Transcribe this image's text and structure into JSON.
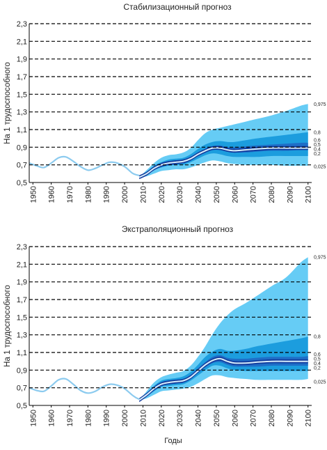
{
  "colors": {
    "band_outer": "#66ccf5",
    "band_mid": "#1c9dde",
    "band_inner": "#1f6ec7",
    "band_core": "#123a9c",
    "median_line": "#d8eefb",
    "historical_line": "#8ccbef",
    "grid": "#000000"
  },
  "chart_data": [
    {
      "type": "area",
      "title": "Стабилизационный прогноз",
      "ylabel": "На 1 трудоспособного",
      "xlabel": "",
      "ylim": [
        0.5,
        2.3
      ],
      "xlim": [
        1948,
        2102
      ],
      "yticks": [
        "0,5",
        "0,7",
        "0,9",
        "1,1",
        "1,3",
        "1,5",
        "1,7",
        "1,9",
        "2,1",
        "2,3"
      ],
      "xticks": [
        "1950",
        "1960",
        "1970",
        "1980",
        "1990",
        "2000",
        "2010",
        "2020",
        "2030",
        "2040",
        "2050",
        "2060",
        "2070",
        "2080",
        "2090",
        "2100"
      ],
      "grid": "horizontal dashed",
      "historical": {
        "x": [
          1948,
          1952,
          1956,
          1960,
          1964,
          1968,
          1972,
          1976,
          1980,
          1984,
          1988,
          1992,
          1996,
          2000,
          2004,
          2006,
          2008
        ],
        "y": [
          0.72,
          0.69,
          0.67,
          0.72,
          0.78,
          0.79,
          0.74,
          0.68,
          0.64,
          0.66,
          0.7,
          0.73,
          0.72,
          0.68,
          0.61,
          0.59,
          0.58
        ]
      },
      "forecast": {
        "x": [
          2008,
          2012,
          2016,
          2020,
          2024,
          2028,
          2032,
          2036,
          2040,
          2044,
          2048,
          2052,
          2056,
          2060,
          2066,
          2072,
          2080,
          2088,
          2096,
          2100
        ],
        "median": [
          0.56,
          0.6,
          0.66,
          0.7,
          0.72,
          0.73,
          0.74,
          0.77,
          0.82,
          0.86,
          0.89,
          0.89,
          0.87,
          0.86,
          0.87,
          0.88,
          0.89,
          0.89,
          0.89,
          0.89
        ],
        "bands": [
          {
            "quantiles": "0.025-0.975",
            "lower": [
              0.56,
              0.57,
              0.6,
              0.63,
              0.64,
              0.65,
              0.65,
              0.67,
              0.7,
              0.73,
              0.75,
              0.74,
              0.72,
              0.71,
              0.7,
              0.7,
              0.7,
              0.69,
              0.69,
              0.69
            ],
            "upper": [
              0.56,
              0.64,
              0.72,
              0.78,
              0.81,
              0.82,
              0.84,
              0.89,
              0.98,
              1.06,
              1.1,
              1.12,
              1.14,
              1.16,
              1.19,
              1.22,
              1.26,
              1.31,
              1.37,
              1.39
            ]
          },
          {
            "quantiles": "0.2-0.8",
            "lower": [
              0.56,
              0.59,
              0.64,
              0.67,
              0.69,
              0.7,
              0.7,
              0.73,
              0.77,
              0.81,
              0.83,
              0.82,
              0.8,
              0.79,
              0.79,
              0.79,
              0.8,
              0.8,
              0.8,
              0.8
            ],
            "upper": [
              0.56,
              0.62,
              0.69,
              0.73,
              0.76,
              0.77,
              0.78,
              0.82,
              0.88,
              0.93,
              0.96,
              0.97,
              0.96,
              0.96,
              0.98,
              1.0,
              1.02,
              1.04,
              1.06,
              1.07
            ]
          },
          {
            "quantiles": "0.4-0.6",
            "lower": [
              0.56,
              0.6,
              0.66,
              0.69,
              0.71,
              0.72,
              0.72,
              0.75,
              0.8,
              0.84,
              0.87,
              0.87,
              0.85,
              0.84,
              0.84,
              0.85,
              0.86,
              0.86,
              0.87,
              0.87
            ],
            "upper": [
              0.56,
              0.61,
              0.68,
              0.72,
              0.74,
              0.75,
              0.76,
              0.79,
              0.84,
              0.88,
              0.91,
              0.92,
              0.9,
              0.9,
              0.91,
              0.92,
              0.93,
              0.94,
              0.95,
              0.95
            ]
          }
        ]
      },
      "quantile_labels": [
        {
          "label": "0,975",
          "y": 1.39
        },
        {
          "label": "0,8",
          "y": 1.07
        },
        {
          "label": "0,6",
          "y": 0.98
        },
        {
          "label": "0,5",
          "y": 0.94
        },
        {
          "label": "0,4",
          "y": 0.9
        },
        {
          "label": "0,2",
          "y": 0.85
        },
        {
          "label": "0,025",
          "y": 0.68
        }
      ]
    },
    {
      "type": "area",
      "title": "Экстраполяционный прогноз",
      "ylabel": "На 1 трудоспособного",
      "xlabel": "Годы",
      "ylim": [
        0.5,
        2.3
      ],
      "xlim": [
        1948,
        2102
      ],
      "yticks": [
        "0,5",
        "0,7",
        "0,9",
        "1,1",
        "1,3",
        "1,5",
        "1,7",
        "1,9",
        "2,1",
        "2,3"
      ],
      "xticks": [
        "1950",
        "1960",
        "1970",
        "1980",
        "1990",
        "2000",
        "2010",
        "2020",
        "2030",
        "2040",
        "2050",
        "2060",
        "2070",
        "2080",
        "2090",
        "2100"
      ],
      "grid": "horizontal dashed",
      "historical": {
        "x": [
          1948,
          1952,
          1956,
          1960,
          1964,
          1968,
          1972,
          1976,
          1980,
          1984,
          1988,
          1992,
          1996,
          2000,
          2004,
          2006,
          2008
        ],
        "y": [
          0.7,
          0.67,
          0.66,
          0.72,
          0.79,
          0.8,
          0.74,
          0.67,
          0.64,
          0.66,
          0.71,
          0.74,
          0.73,
          0.69,
          0.62,
          0.59,
          0.57
        ]
      },
      "forecast": {
        "x": [
          2008,
          2012,
          2016,
          2020,
          2024,
          2028,
          2032,
          2036,
          2040,
          2044,
          2048,
          2052,
          2056,
          2060,
          2066,
          2072,
          2080,
          2088,
          2096,
          2100
        ],
        "median": [
          0.56,
          0.62,
          0.69,
          0.74,
          0.76,
          0.77,
          0.78,
          0.82,
          0.89,
          0.96,
          1.01,
          1.03,
          1.0,
          0.98,
          0.98,
          0.99,
          1.0,
          1.0,
          1.0,
          1.0
        ],
        "bands": [
          {
            "quantiles": "0.025-0.975",
            "lower": [
              0.56,
              0.58,
              0.62,
              0.66,
              0.67,
              0.68,
              0.69,
              0.71,
              0.75,
              0.8,
              0.84,
              0.84,
              0.82,
              0.81,
              0.8,
              0.79,
              0.79,
              0.79,
              0.79,
              0.8
            ],
            "upper": [
              0.56,
              0.66,
              0.76,
              0.82,
              0.85,
              0.87,
              0.89,
              0.95,
              1.05,
              1.17,
              1.31,
              1.43,
              1.52,
              1.59,
              1.66,
              1.74,
              1.85,
              1.95,
              2.12,
              2.18
            ]
          },
          {
            "quantiles": "0.2-0.8",
            "lower": [
              0.56,
              0.6,
              0.66,
              0.71,
              0.72,
              0.73,
              0.74,
              0.78,
              0.84,
              0.9,
              0.95,
              0.95,
              0.92,
              0.9,
              0.89,
              0.89,
              0.89,
              0.89,
              0.89,
              0.89
            ],
            "upper": [
              0.56,
              0.64,
              0.72,
              0.78,
              0.8,
              0.81,
              0.83,
              0.88,
              0.96,
              1.05,
              1.11,
              1.14,
              1.12,
              1.12,
              1.14,
              1.17,
              1.2,
              1.23,
              1.26,
              1.28
            ]
          },
          {
            "quantiles": "0.4-0.6",
            "lower": [
              0.56,
              0.61,
              0.68,
              0.73,
              0.74,
              0.75,
              0.76,
              0.8,
              0.87,
              0.93,
              0.98,
              0.99,
              0.96,
              0.94,
              0.94,
              0.94,
              0.95,
              0.95,
              0.95,
              0.95
            ],
            "upper": [
              0.56,
              0.63,
              0.71,
              0.76,
              0.78,
              0.79,
              0.8,
              0.85,
              0.92,
              0.99,
              1.05,
              1.07,
              1.04,
              1.03,
              1.03,
              1.04,
              1.05,
              1.05,
              1.05,
              1.06
            ]
          }
        ]
      },
      "quantile_labels": [
        {
          "label": "0,975",
          "y": 2.18
        },
        {
          "label": "0,8",
          "y": 1.28
        },
        {
          "label": "0,6",
          "y": 1.08
        },
        {
          "label": "0,5",
          "y": 1.04
        },
        {
          "label": "0,4",
          "y": 1.0
        },
        {
          "label": "0,2",
          "y": 0.96
        },
        {
          "label": "0,025",
          "y": 0.77
        }
      ]
    }
  ]
}
